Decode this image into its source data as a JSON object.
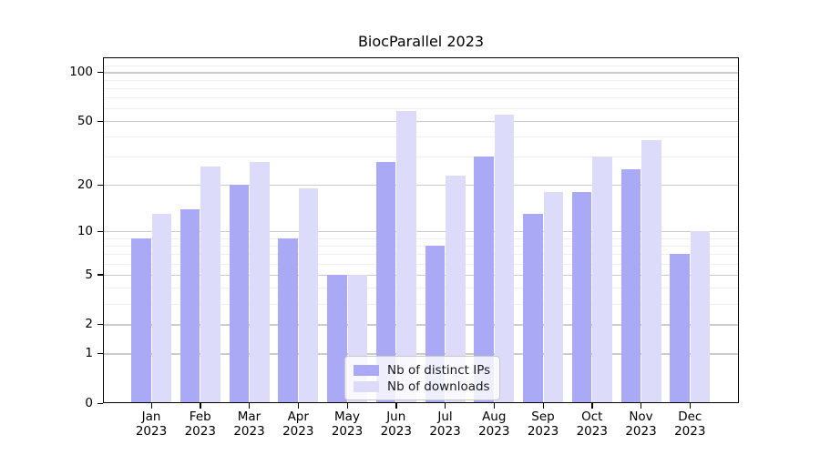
{
  "figure": {
    "title": "BiocParallel 2023"
  },
  "chart_data": {
    "type": "bar",
    "title": "BiocParallel 2023",
    "scale": "log1p",
    "grid": true,
    "categories": [
      "Jan",
      "Feb",
      "Mar",
      "Apr",
      "May",
      "Jun",
      "Jul",
      "Aug",
      "Sep",
      "Oct",
      "Nov",
      "Dec"
    ],
    "year": "2023",
    "series": [
      {
        "name": "Nb of distinct IPs",
        "color": "#a9a9f5",
        "values": [
          9,
          14,
          20,
          9,
          5,
          28,
          8,
          30,
          13,
          18,
          25,
          7
        ]
      },
      {
        "name": "Nb of downloads",
        "color": "#dcdcfa",
        "values": [
          13,
          26,
          28,
          19,
          5,
          58,
          23,
          55,
          18,
          30,
          38,
          10
        ]
      }
    ],
    "y_axis": {
      "tick_values": [
        0,
        1,
        2,
        5,
        10,
        20,
        50,
        100
      ],
      "minor_gridline_values": [
        3,
        4,
        6,
        7,
        8,
        9,
        30,
        40,
        60,
        70,
        80,
        90,
        110
      ],
      "range": [
        0,
        123
      ]
    },
    "x_axis": {
      "label_format": "month over year, two lines"
    },
    "legend": {
      "position": "lower center-right"
    },
    "colors": {
      "major_gridline": "#cbcbcb",
      "minor_gridline": "#efefef",
      "spine": "#000000",
      "background": "#ffffff",
      "text": "#000000"
    }
  }
}
